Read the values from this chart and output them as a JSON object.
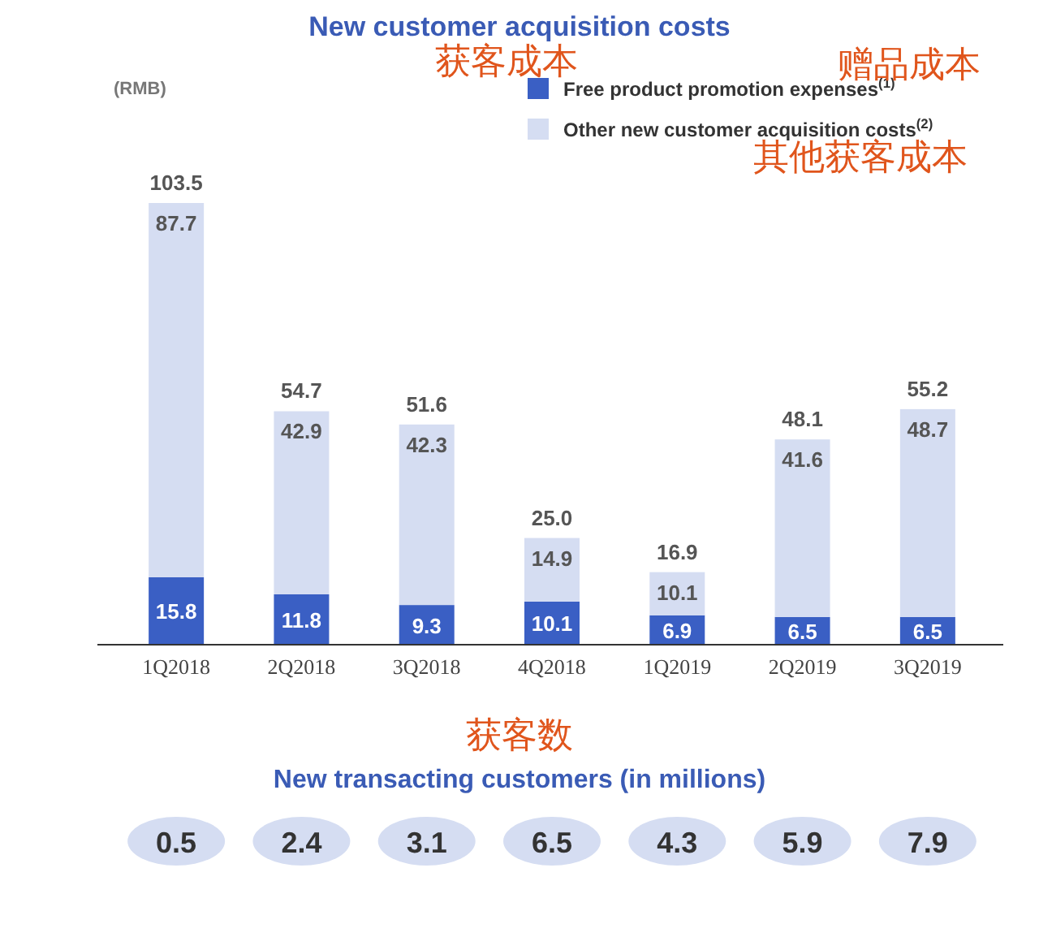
{
  "chart_data": [
    {
      "type": "bar",
      "title": "New customer acquisition costs",
      "ylabel": "(RMB)",
      "annotations": [
        "获客成本",
        "赠品成本",
        "其他获客成本"
      ],
      "categories": [
        "1Q2018",
        "2Q2018",
        "3Q2018",
        "4Q2018",
        "1Q2019",
        "2Q2019",
        "3Q2019"
      ],
      "stacked": true,
      "data_labels": true,
      "legend": "top right",
      "series": [
        {
          "name": "Free product promotion expenses$^{(1)}$",
          "color": "#3a5fc4",
          "values": [
            15.8,
            11.8,
            9.3,
            10.1,
            6.9,
            6.5,
            6.5
          ]
        },
        {
          "name": "Other new customer acquisition costs$^{(2)}$",
          "color": "#d5ddf2",
          "values": [
            87.7,
            42.9,
            42.3,
            14.9,
            10.1,
            41.6,
            48.7
          ]
        }
      ],
      "totals": [
        "103.5",
        "54.7",
        "51.6",
        "25.0",
        "16.9",
        "48.1",
        "55.2"
      ]
    },
    {
      "type": "other",
      "title": "New transacting customers (in millions)",
      "annotations": [
        "获客数"
      ],
      "categories": [
        null,
        null,
        null,
        null,
        null,
        null,
        null
      ],
      "values": [
        0.5,
        2.4,
        3.1,
        6.5,
        4.3,
        5.9,
        7.9
      ],
      "data_labels": true
    }
  ]
}
